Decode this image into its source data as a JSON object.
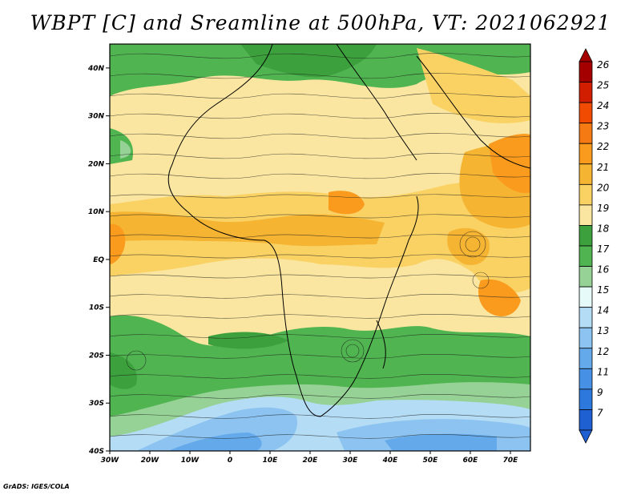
{
  "title": "WBPT [C] and Sreamline at 500hPa, VT: 2021062921",
  "credit": "GrADS: IGES/COLA",
  "map": {
    "lon_range": [
      -30,
      75
    ],
    "lat_range": [
      -40,
      45
    ],
    "lat_ticks": [
      {
        "value": 40,
        "label": "40N"
      },
      {
        "value": 30,
        "label": "30N"
      },
      {
        "value": 20,
        "label": "20N"
      },
      {
        "value": 10,
        "label": "10N"
      },
      {
        "value": 0,
        "label": "EQ"
      },
      {
        "value": -10,
        "label": "10S"
      },
      {
        "value": -20,
        "label": "20S"
      },
      {
        "value": -30,
        "label": "30S"
      },
      {
        "value": -40,
        "label": "40S"
      }
    ],
    "lon_ticks": [
      {
        "value": -30,
        "label": "30W"
      },
      {
        "value": -20,
        "label": "20W"
      },
      {
        "value": -10,
        "label": "10W"
      },
      {
        "value": 0,
        "label": "0"
      },
      {
        "value": 10,
        "label": "10E"
      },
      {
        "value": 20,
        "label": "20E"
      },
      {
        "value": 30,
        "label": "30E"
      },
      {
        "value": 40,
        "label": "40E"
      },
      {
        "value": 50,
        "label": "50E"
      },
      {
        "value": 60,
        "label": "60E"
      },
      {
        "value": 70,
        "label": "70E"
      }
    ]
  },
  "colorbar": {
    "labels": [
      "26",
      "25",
      "24",
      "23",
      "22",
      "21",
      "20",
      "19",
      "18",
      "17",
      "16",
      "15",
      "14",
      "13",
      "12",
      "11",
      "9",
      "7"
    ],
    "colors": [
      "#a50000",
      "#d21e00",
      "#f04b00",
      "#f57a14",
      "#fa9b1e",
      "#f5b432",
      "#fad264",
      "#fae6a0",
      "#3ca03c",
      "#50b450",
      "#96d296",
      "#e6fafa",
      "#b4dcf5",
      "#8cc3f0",
      "#64aaeb",
      "#4691e6",
      "#2d78dc",
      "#1e5fd2"
    ]
  }
}
